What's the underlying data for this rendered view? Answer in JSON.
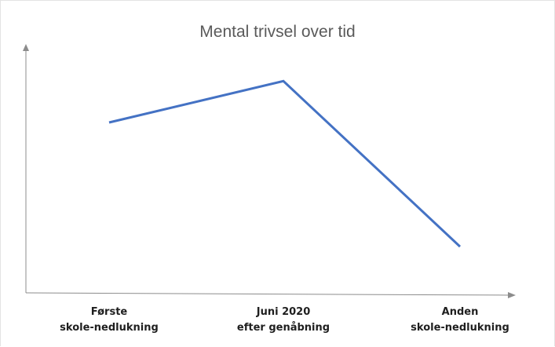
{
  "chart_data": {
    "type": "line",
    "title": "Mental trivsel over tid",
    "xlabel": "",
    "ylabel": "",
    "categories": [
      [
        "Første",
        "skole-nedlukning"
      ],
      [
        "Juni 2020",
        "efter genåbning"
      ],
      [
        "Anden",
        "skole-nedlukning"
      ]
    ],
    "series": [
      {
        "values": [
          70,
          87,
          19
        ],
        "color": "#4472c4"
      }
    ],
    "ylim": [
      0,
      120
    ],
    "grid": false,
    "legend": "none",
    "axis_color": "#8c8c8c",
    "y_ticks_shown": false
  }
}
